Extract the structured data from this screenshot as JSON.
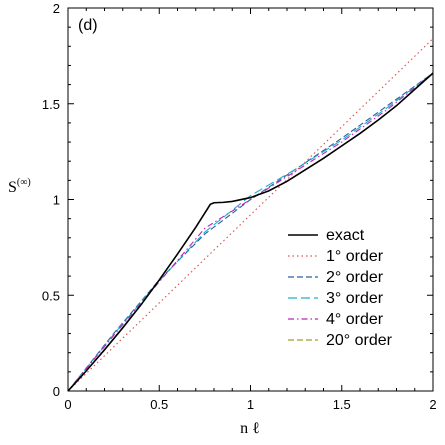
{
  "chart_data": {
    "type": "line",
    "panel_label": "(d)",
    "xlabel": "n ℓ",
    "ylabel_main": "S",
    "ylabel_sup": "(∞)",
    "xlim": [
      0,
      2
    ],
    "ylim": [
      0,
      2
    ],
    "xticks": [
      0,
      0.5,
      1,
      1.5,
      2
    ],
    "xtick_labels": [
      "0",
      "0.5",
      "1",
      "1.5",
      "2"
    ],
    "yticks": [
      0,
      0.5,
      1,
      1.5,
      2
    ],
    "ytick_labels": [
      "0",
      "0.5",
      "1",
      "1.5",
      "2"
    ],
    "grid": false,
    "legend_position": "lower-right",
    "series": [
      {
        "name": "exact",
        "color": "#000000",
        "dash": "solid",
        "x": [
          0,
          0.1,
          0.2,
          0.3,
          0.4,
          0.5,
          0.6,
          0.7,
          0.78,
          0.8,
          0.85,
          0.9,
          1.0,
          1.1,
          1.2,
          1.3,
          1.4,
          1.5,
          1.6,
          1.7,
          1.8,
          1.9,
          2.0
        ],
        "y": [
          0,
          0.105,
          0.215,
          0.33,
          0.45,
          0.58,
          0.715,
          0.855,
          0.975,
          0.983,
          0.985,
          0.99,
          1.01,
          1.045,
          1.095,
          1.155,
          1.215,
          1.28,
          1.345,
          1.415,
          1.49,
          1.575,
          1.66
        ]
      },
      {
        "name": "1° order",
        "color": "#d9534f",
        "dash": "dot",
        "x": [
          0,
          2
        ],
        "y": [
          0,
          1.84
        ]
      },
      {
        "name": "2° order",
        "color": "#2f5f9f",
        "dash": "dash",
        "x": [
          0,
          0.25,
          0.5,
          0.75,
          1.0,
          1.25,
          1.5,
          1.75,
          2.0
        ],
        "y": [
          0,
          0.3,
          0.58,
          0.82,
          1.0,
          1.16,
          1.32,
          1.49,
          1.66
        ]
      },
      {
        "name": "3° order",
        "color": "#20b0c8",
        "dash": "longdash",
        "x": [
          0,
          0.25,
          0.5,
          0.75,
          1.0,
          1.25,
          1.5,
          1.75,
          2.0
        ],
        "y": [
          0,
          0.295,
          0.575,
          0.83,
          1.02,
          1.16,
          1.31,
          1.48,
          1.66
        ]
      },
      {
        "name": "4° order",
        "color": "#c020c0",
        "dash": "dashdot",
        "x": [
          0,
          0.25,
          0.5,
          0.75,
          1.0,
          1.25,
          1.5,
          1.75,
          2.0
        ],
        "y": [
          0,
          0.29,
          0.57,
          0.85,
          1.0,
          1.15,
          1.3,
          1.47,
          1.66
        ]
      },
      {
        "name": "20° order",
        "color": "#a0a020",
        "dash": "dash",
        "x": [
          0,
          0.1,
          0.2,
          0.3,
          0.4,
          0.5,
          0.6,
          0.7,
          0.78,
          0.8,
          0.85,
          0.9,
          1.0,
          1.1,
          1.2,
          1.3,
          1.4,
          1.5,
          1.6,
          1.7,
          1.8,
          1.9,
          2.0
        ],
        "y": [
          0,
          0.105,
          0.215,
          0.33,
          0.45,
          0.58,
          0.715,
          0.855,
          0.975,
          0.983,
          0.985,
          0.99,
          1.01,
          1.045,
          1.095,
          1.155,
          1.215,
          1.28,
          1.345,
          1.415,
          1.49,
          1.575,
          1.66
        ]
      }
    ]
  }
}
